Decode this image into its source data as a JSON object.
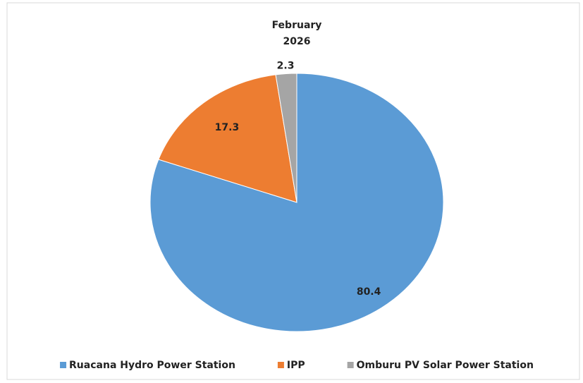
{
  "chart_data": {
    "type": "pie",
    "title": [
      "February",
      "2026"
    ],
    "categories": [
      "Ruacana Hydro Power Station",
      "IPP",
      "Omburu PV Solar Power Station"
    ],
    "values": [
      80.4,
      17.3,
      2.3
    ],
    "colors": [
      "#5b9bd5",
      "#ed7d31",
      "#a5a5a5"
    ]
  }
}
